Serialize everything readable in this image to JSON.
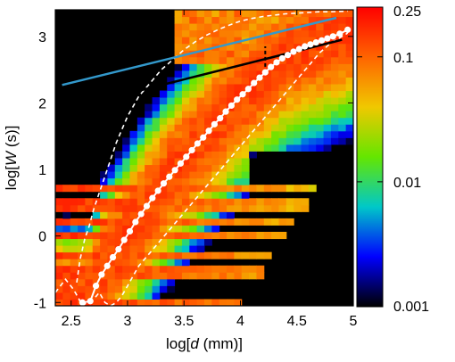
{
  "chart_data": {
    "type": "heatmap",
    "title": "",
    "xlabel": {
      "prefix": "log[",
      "var": "d",
      "suffix": "  (mm)]"
    },
    "ylabel": {
      "prefix": "log[",
      "var": "W",
      "suffix": "  (s)]"
    },
    "xlim": [
      2.36,
      5.0
    ],
    "ylim": [
      -1.05,
      3.4
    ],
    "x_ticks": [
      2.5,
      3,
      3.5,
      4,
      4.5,
      5
    ],
    "x_tick_labels": [
      "2.5",
      "3",
      "3.5",
      "4",
      "4.5",
      "5"
    ],
    "y_ticks": [
      -1,
      0,
      1,
      2,
      3
    ],
    "y_tick_labels": [
      "-1",
      "0",
      "1",
      "2",
      "3"
    ],
    "colorbar": {
      "scale": "log",
      "range": [
        0.001,
        0.25
      ],
      "ticks": [
        0.25,
        0.1,
        0.01,
        0.001
      ],
      "tick_labels": [
        "0.25",
        "0.1",
        "0.01",
        "0.001"
      ],
      "colors": [
        "#000000",
        "#0000ff",
        "#00c8c8",
        "#64e600",
        "#f0c800",
        "#ff6400",
        "#ff0000"
      ]
    },
    "blue_line": {
      "x": [
        2.42,
        4.85
      ],
      "y": [
        2.27,
        3.28
      ],
      "color": "#3399cc"
    },
    "black_line": {
      "x": [
        2.55,
        4.9
      ],
      "y": [
        1.95,
        2.95
      ],
      "color": "#000000"
    },
    "dashed_marker": {
      "x": 4.22,
      "y": [
        2.45,
        2.85
      ]
    },
    "median_curve": {
      "x": [
        2.6,
        2.67,
        2.72,
        2.77,
        2.82,
        2.87,
        2.92,
        2.97,
        3.02,
        3.07,
        3.12,
        3.17,
        3.22,
        3.27,
        3.32,
        3.37,
        3.42,
        3.47,
        3.52,
        3.57,
        3.62,
        3.67,
        3.72,
        3.77,
        3.82,
        3.87,
        3.92,
        3.97,
        4.02,
        4.07,
        4.12,
        4.17,
        4.22,
        4.27,
        4.32,
        4.37,
        4.42,
        4.47,
        4.52,
        4.57,
        4.62,
        4.67,
        4.72,
        4.77,
        4.82,
        4.88,
        4.95
      ],
      "y": [
        -1.0,
        -0.98,
        -0.75,
        -0.58,
        -0.45,
        -0.32,
        -0.2,
        -0.06,
        0.07,
        0.21,
        0.33,
        0.45,
        0.57,
        0.68,
        0.79,
        0.89,
        0.99,
        1.09,
        1.19,
        1.29,
        1.39,
        1.48,
        1.58,
        1.68,
        1.77,
        1.87,
        1.96,
        2.05,
        2.13,
        2.21,
        2.3,
        2.38,
        2.46,
        2.54,
        2.61,
        2.67,
        2.72,
        2.77,
        2.81,
        2.85,
        2.88,
        2.91,
        2.94,
        2.97,
        3.0,
        3.04,
        3.1
      ]
    },
    "lower_quantile": {
      "x": [
        2.36,
        2.45,
        2.52,
        2.57,
        2.6,
        2.64,
        2.7,
        2.75,
        2.8,
        2.85,
        2.9,
        2.95,
        3.0,
        3.05,
        3.1,
        3.15,
        3.2,
        3.3,
        3.4,
        3.5,
        3.6,
        3.7,
        3.8,
        3.9,
        4.0,
        4.1,
        4.2,
        4.3,
        4.4,
        4.5,
        4.6,
        4.7,
        4.8,
        4.95
      ],
      "y": [
        -0.85,
        -0.65,
        -0.8,
        -0.95,
        -1.05,
        -1.0,
        -0.95,
        -0.85,
        -1.0,
        -1.05,
        -1.0,
        -0.9,
        -0.75,
        -0.6,
        -0.45,
        -0.35,
        -0.25,
        -0.05,
        0.15,
        0.35,
        0.55,
        0.75,
        0.95,
        1.15,
        1.35,
        1.55,
        1.75,
        1.95,
        2.15,
        2.35,
        2.55,
        2.75,
        2.9,
        3.05
      ]
    },
    "upper_quantile": {
      "x": [
        2.55,
        2.58,
        2.62,
        2.66,
        2.7,
        2.75,
        2.8,
        2.85,
        2.9,
        2.95,
        3.0,
        3.05,
        3.1,
        3.2,
        3.3,
        3.4,
        3.5,
        3.6,
        3.7,
        3.8,
        3.9,
        4.0,
        4.1,
        4.2,
        4.3,
        4.4,
        4.5,
        4.6,
        4.7,
        4.8,
        4.95
      ],
      "y": [
        -0.7,
        -0.35,
        -0.05,
        0.15,
        0.4,
        0.65,
        0.9,
        1.15,
        1.4,
        1.6,
        1.8,
        1.95,
        2.1,
        2.3,
        2.5,
        2.65,
        2.8,
        2.92,
        3.02,
        3.1,
        3.17,
        3.23,
        3.27,
        3.3,
        3.32,
        3.34,
        3.35,
        3.36,
        3.37,
        3.37,
        3.38
      ]
    }
  }
}
